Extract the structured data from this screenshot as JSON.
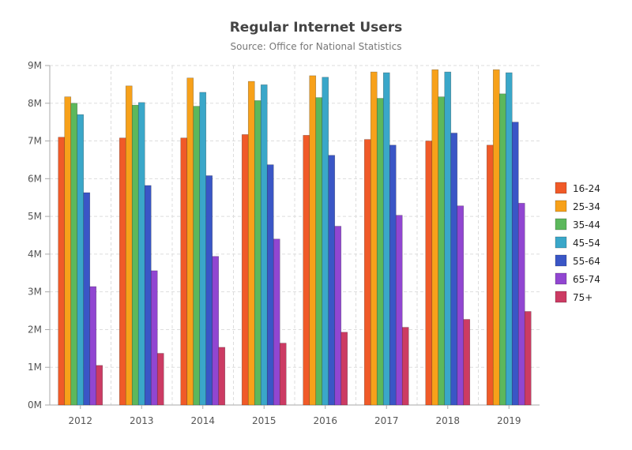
{
  "chart_data": {
    "type": "bar",
    "title": "Regular Internet Users",
    "subtitle": "Source: Office for National Statistics",
    "xlabel": "",
    "ylabel": "",
    "categories": [
      "2012",
      "2013",
      "2014",
      "2015",
      "2016",
      "2017",
      "2018",
      "2019"
    ],
    "ylim": [
      0,
      9000000
    ],
    "yticks": [
      "0M",
      "1M",
      "2M",
      "3M",
      "4M",
      "5M",
      "6M",
      "7M",
      "8M",
      "9M"
    ],
    "grid": true,
    "legend_position": "right",
    "series": [
      {
        "name": "16-24",
        "color": "#f05a28",
        "values": [
          7100000,
          7080000,
          7080000,
          7170000,
          7150000,
          7040000,
          7000000,
          6890000
        ]
      },
      {
        "name": "25-34",
        "color": "#f7a11a",
        "values": [
          8170000,
          8460000,
          8670000,
          8580000,
          8730000,
          8830000,
          8890000,
          8890000
        ]
      },
      {
        "name": "35-44",
        "color": "#5cb85c",
        "values": [
          8000000,
          7950000,
          7920000,
          8070000,
          8150000,
          8130000,
          8170000,
          8250000
        ]
      },
      {
        "name": "45-54",
        "color": "#3aa7c9",
        "values": [
          7700000,
          8020000,
          8290000,
          8490000,
          8690000,
          8810000,
          8830000,
          8810000
        ]
      },
      {
        "name": "55-64",
        "color": "#3a56c6",
        "values": [
          5630000,
          5820000,
          6080000,
          6370000,
          6620000,
          6890000,
          7210000,
          7500000
        ]
      },
      {
        "name": "65-74",
        "color": "#9146d1",
        "values": [
          3140000,
          3560000,
          3940000,
          4400000,
          4740000,
          5030000,
          5280000,
          5350000
        ]
      },
      {
        "name": "75+",
        "color": "#cc3b63",
        "values": [
          1050000,
          1370000,
          1530000,
          1640000,
          1930000,
          2060000,
          2270000,
          2480000
        ]
      }
    ]
  }
}
